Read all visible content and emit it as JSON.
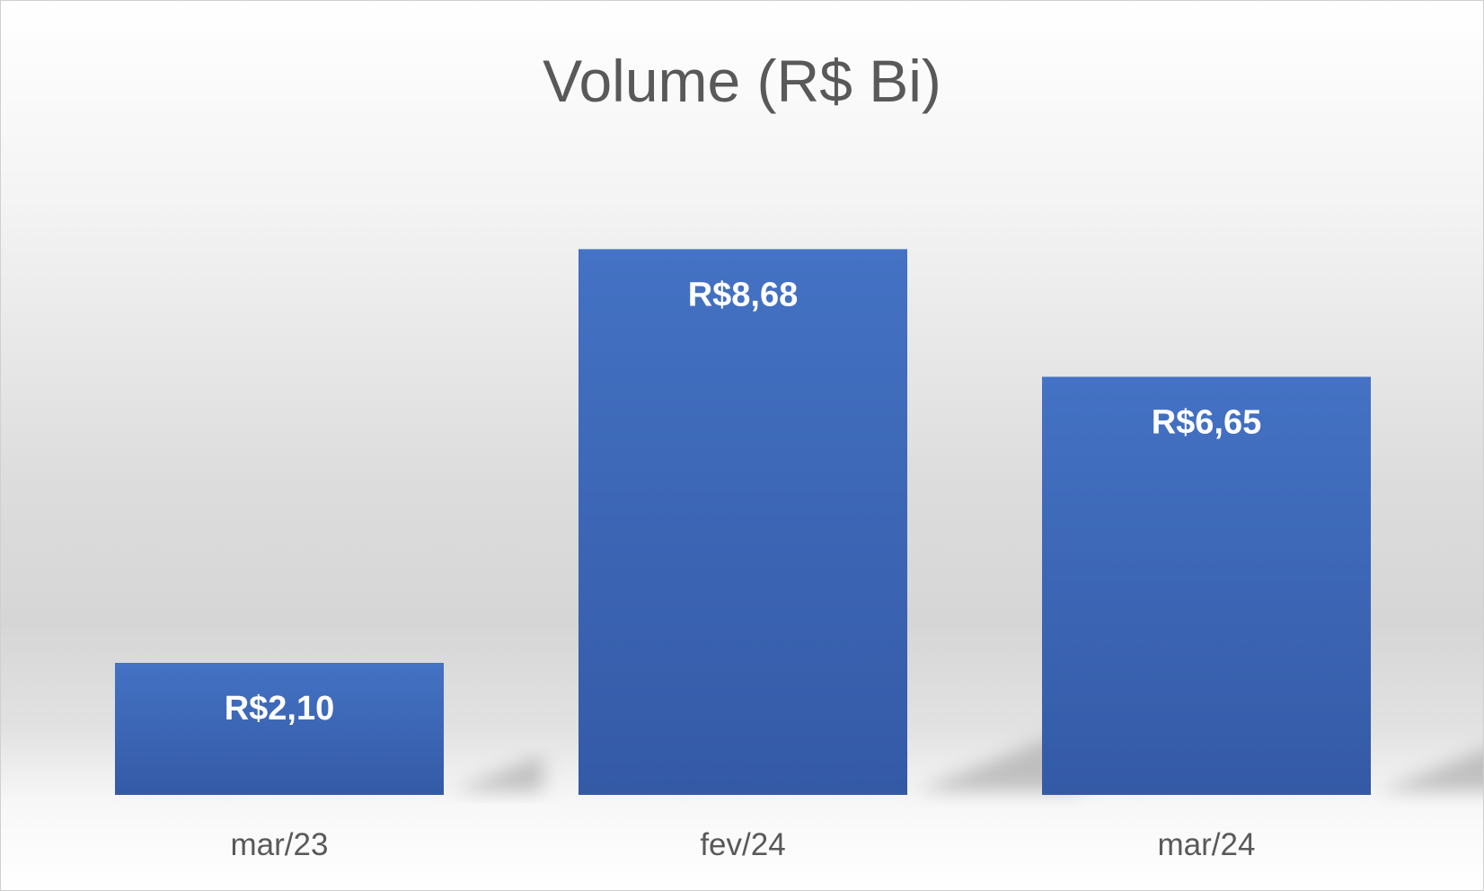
{
  "chart_data": {
    "type": "bar",
    "title": "Volume (R$ Bi)",
    "categories": [
      "mar/23",
      "fev/24",
      "mar/24"
    ],
    "values": [
      2.1,
      8.68,
      6.65
    ],
    "data_labels": [
      "R$2,10",
      "R$8,68",
      "R$6,65"
    ],
    "xlabel": "",
    "ylabel": "",
    "ylim": [
      0,
      10
    ],
    "grid": false,
    "legend": "none",
    "colors": {
      "bar_top": "#4472c4",
      "bar_bottom": "#345aa6",
      "title": "#595959",
      "tick_label": "#595959",
      "data_label": "#ffffff"
    }
  }
}
